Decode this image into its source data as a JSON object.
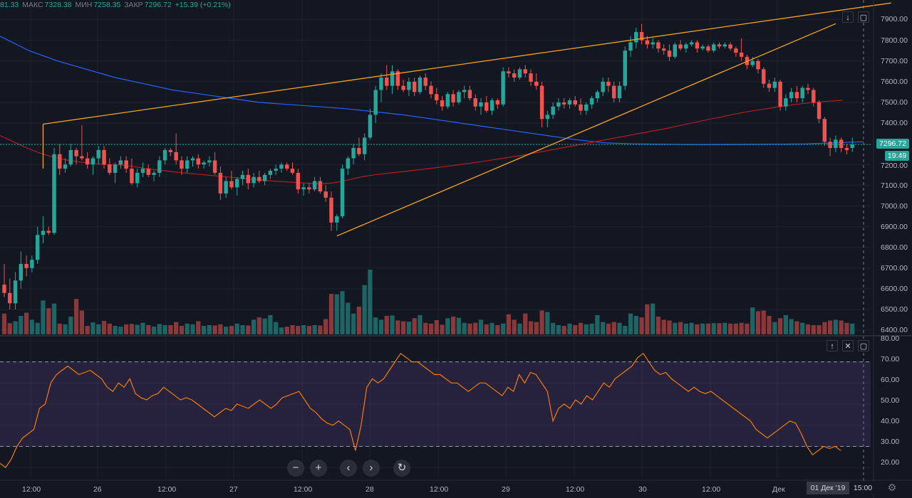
{
  "ohlc": {
    "open_value": "81.33",
    "high_label": "МАКС",
    "high_value": "7328.38",
    "low_label": "МИН",
    "low_value": "7258.35",
    "close_label": "ЗАКР",
    "close_value": "7296.72",
    "change": "+15.39 (+0.21%)"
  },
  "price_axis": {
    "ticks": [
      "7900.00",
      "7800.00",
      "7700.00",
      "7600.00",
      "7500.00",
      "7400.00",
      "7300.00",
      "7200.00",
      "7100.00",
      "7000.00",
      "6900.00",
      "6800.00",
      "6700.00",
      "6600.00",
      "6500.00",
      "6400.00"
    ],
    "last_price": "7296.72",
    "countdown": "19:49"
  },
  "rsi_axis": {
    "ticks": [
      "80.00",
      "70.00",
      "60.00",
      "50.00",
      "40.00",
      "30.00",
      "20.00"
    ]
  },
  "time_axis": {
    "labels": [
      "12:00",
      "26",
      "12:00",
      "27",
      "12:00",
      "28",
      "12:00",
      "29",
      "12:00",
      "30",
      "12:00",
      "Дек"
    ],
    "crosshair_date": "01 Дек '19",
    "crosshair_time": "15:00"
  },
  "colors": {
    "up": "#26a69a",
    "down": "#ef5350",
    "trendline": "#f7a21b",
    "ma_slow": "#2962ff",
    "ma_fast": "#b71c1c",
    "rsi_line": "#f57c00",
    "rsi_band": "#7e57c2"
  },
  "icons": {
    "collapse": "arrow-down-icon",
    "maximize": "maximize-icon",
    "move_up": "arrow-up-icon",
    "close": "close-icon",
    "zoom_out": "minus-icon",
    "zoom_in": "plus-icon",
    "scroll_left": "chevron-left-icon",
    "scroll_right": "chevron-right-icon",
    "reset": "reset-icon",
    "settings": "gear-icon"
  },
  "chart_data": {
    "type": "candlestick",
    "pane": "price",
    "ylim": [
      6380,
      7960
    ],
    "candles": [
      [
        6620,
        6720,
        6560,
        6580
      ],
      [
        6580,
        6650,
        6500,
        6530
      ],
      [
        6530,
        6680,
        6500,
        6640
      ],
      [
        6640,
        6780,
        6600,
        6720
      ],
      [
        6720,
        6760,
        6660,
        6700
      ],
      [
        6700,
        6760,
        6680,
        6740
      ],
      [
        6740,
        6900,
        6720,
        6860
      ],
      [
        6860,
        6950,
        6820,
        6880
      ],
      [
        6880,
        6900,
        6860,
        6870
      ],
      [
        6870,
        7280,
        6860,
        7250
      ],
      [
        7250,
        7300,
        7150,
        7180
      ],
      [
        7180,
        7230,
        7160,
        7200
      ],
      [
        7200,
        7300,
        7190,
        7270
      ],
      [
        7270,
        7280,
        7200,
        7240
      ],
      [
        7240,
        7390,
        7220,
        7230
      ],
      [
        7230,
        7260,
        7180,
        7200
      ],
      [
        7200,
        7240,
        7150,
        7230
      ],
      [
        7230,
        7290,
        7200,
        7270
      ],
      [
        7270,
        7290,
        7180,
        7200
      ],
      [
        7200,
        7230,
        7150,
        7160
      ],
      [
        7160,
        7210,
        7110,
        7200
      ],
      [
        7200,
        7240,
        7180,
        7220
      ],
      [
        7220,
        7240,
        7160,
        7180
      ],
      [
        7180,
        7230,
        7100,
        7110
      ],
      [
        7110,
        7180,
        7090,
        7160
      ],
      [
        7160,
        7210,
        7140,
        7180
      ],
      [
        7180,
        7200,
        7140,
        7150
      ],
      [
        7150,
        7170,
        7120,
        7160
      ],
      [
        7160,
        7240,
        7140,
        7220
      ],
      [
        7220,
        7280,
        7200,
        7270
      ],
      [
        7270,
        7280,
        7240,
        7260
      ],
      [
        7260,
        7350,
        7200,
        7220
      ],
      [
        7220,
        7240,
        7150,
        7180
      ],
      [
        7180,
        7240,
        7160,
        7220
      ],
      [
        7220,
        7240,
        7190,
        7230
      ],
      [
        7230,
        7250,
        7180,
        7200
      ],
      [
        7200,
        7220,
        7180,
        7210
      ],
      [
        7210,
        7240,
        7190,
        7220
      ],
      [
        7220,
        7260,
        7150,
        7160
      ],
      [
        7160,
        7190,
        7030,
        7060
      ],
      [
        7060,
        7140,
        7040,
        7120
      ],
      [
        7120,
        7170,
        7080,
        7090
      ],
      [
        7090,
        7140,
        7050,
        7130
      ],
      [
        7130,
        7170,
        7100,
        7150
      ],
      [
        7150,
        7180,
        7080,
        7110
      ],
      [
        7110,
        7160,
        7090,
        7140
      ],
      [
        7140,
        7170,
        7110,
        7120
      ],
      [
        7120,
        7160,
        7100,
        7150
      ],
      [
        7150,
        7180,
        7130,
        7170
      ],
      [
        7170,
        7200,
        7150,
        7180
      ],
      [
        7180,
        7210,
        7160,
        7200
      ],
      [
        7200,
        7210,
        7170,
        7180
      ],
      [
        7180,
        7210,
        7150,
        7160
      ],
      [
        7160,
        7180,
        7060,
        7080
      ],
      [
        7080,
        7110,
        7050,
        7090
      ],
      [
        7090,
        7110,
        7060,
        7080
      ],
      [
        7080,
        7140,
        7070,
        7120
      ],
      [
        7120,
        7140,
        7060,
        7070
      ],
      [
        7070,
        7100,
        7020,
        7040
      ],
      [
        7040,
        7070,
        6880,
        6920
      ],
      [
        6920,
        6960,
        6880,
        6950
      ],
      [
        6950,
        7200,
        6940,
        7180
      ],
      [
        7180,
        7240,
        7150,
        7230
      ],
      [
        7230,
        7300,
        7200,
        7280
      ],
      [
        7280,
        7330,
        7240,
        7250
      ],
      [
        7250,
        7350,
        7220,
        7330
      ],
      [
        7330,
        7470,
        7320,
        7440
      ],
      [
        7440,
        7580,
        7400,
        7560
      ],
      [
        7560,
        7640,
        7500,
        7620
      ],
      [
        7620,
        7680,
        7560,
        7580
      ],
      [
        7580,
        7680,
        7540,
        7650
      ],
      [
        7650,
        7660,
        7560,
        7580
      ],
      [
        7580,
        7610,
        7550,
        7560
      ],
      [
        7560,
        7620,
        7530,
        7600
      ],
      [
        7600,
        7620,
        7530,
        7550
      ],
      [
        7550,
        7630,
        7540,
        7620
      ],
      [
        7620,
        7640,
        7560,
        7580
      ],
      [
        7580,
        7600,
        7520,
        7540
      ],
      [
        7540,
        7570,
        7490,
        7510
      ],
      [
        7510,
        7530,
        7460,
        7480
      ],
      [
        7480,
        7550,
        7470,
        7540
      ],
      [
        7540,
        7560,
        7480,
        7500
      ],
      [
        7500,
        7560,
        7490,
        7550
      ],
      [
        7550,
        7580,
        7520,
        7560
      ],
      [
        7560,
        7580,
        7510,
        7520
      ],
      [
        7520,
        7540,
        7460,
        7480
      ],
      [
        7480,
        7520,
        7440,
        7500
      ],
      [
        7500,
        7530,
        7450,
        7460
      ],
      [
        7460,
        7520,
        7440,
        7510
      ],
      [
        7510,
        7520,
        7470,
        7490
      ],
      [
        7490,
        7670,
        7480,
        7650
      ],
      [
        7650,
        7670,
        7620,
        7640
      ],
      [
        7640,
        7660,
        7600,
        7620
      ],
      [
        7620,
        7670,
        7610,
        7660
      ],
      [
        7660,
        7680,
        7620,
        7640
      ],
      [
        7640,
        7660,
        7580,
        7600
      ],
      [
        7600,
        7640,
        7560,
        7580
      ],
      [
        7580,
        7600,
        7380,
        7420
      ],
      [
        7420,
        7460,
        7380,
        7440
      ],
      [
        7440,
        7500,
        7420,
        7480
      ],
      [
        7480,
        7520,
        7460,
        7500
      ],
      [
        7500,
        7520,
        7470,
        7490
      ],
      [
        7490,
        7520,
        7470,
        7510
      ],
      [
        7510,
        7530,
        7480,
        7490
      ],
      [
        7490,
        7520,
        7440,
        7460
      ],
      [
        7460,
        7500,
        7440,
        7490
      ],
      [
        7490,
        7530,
        7470,
        7520
      ],
      [
        7520,
        7560,
        7500,
        7550
      ],
      [
        7550,
        7620,
        7530,
        7600
      ],
      [
        7600,
        7620,
        7550,
        7580
      ],
      [
        7580,
        7600,
        7500,
        7520
      ],
      [
        7520,
        7600,
        7500,
        7580
      ],
      [
        7580,
        7770,
        7560,
        7750
      ],
      [
        7750,
        7820,
        7720,
        7790
      ],
      [
        7790,
        7860,
        7760,
        7840
      ],
      [
        7840,
        7880,
        7780,
        7800
      ],
      [
        7800,
        7820,
        7760,
        7780
      ],
      [
        7780,
        7810,
        7760,
        7790
      ],
      [
        7790,
        7800,
        7740,
        7760
      ],
      [
        7760,
        7780,
        7730,
        7750
      ],
      [
        7750,
        7780,
        7700,
        7720
      ],
      [
        7720,
        7790,
        7710,
        7780
      ],
      [
        7780,
        7800,
        7750,
        7760
      ],
      [
        7760,
        7790,
        7740,
        7780
      ],
      [
        7780,
        7800,
        7770,
        7790
      ],
      [
        7790,
        7800,
        7740,
        7760
      ],
      [
        7760,
        7780,
        7750,
        7770
      ],
      [
        7770,
        7780,
        7740,
        7750
      ],
      [
        7750,
        7790,
        7740,
        7780
      ],
      [
        7780,
        7790,
        7760,
        7770
      ],
      [
        7770,
        7790,
        7760,
        7780
      ],
      [
        7780,
        7790,
        7750,
        7760
      ],
      [
        7760,
        7770,
        7720,
        7740
      ],
      [
        7740,
        7810,
        7700,
        7720
      ],
      [
        7720,
        7730,
        7660,
        7680
      ],
      [
        7680,
        7720,
        7670,
        7700
      ],
      [
        7700,
        7710,
        7640,
        7660
      ],
      [
        7660,
        7670,
        7570,
        7590
      ],
      [
        7590,
        7610,
        7550,
        7570
      ],
      [
        7570,
        7620,
        7550,
        7600
      ],
      [
        7600,
        7610,
        7460,
        7480
      ],
      [
        7480,
        7540,
        7460,
        7520
      ],
      [
        7520,
        7570,
        7500,
        7550
      ],
      [
        7550,
        7580,
        7500,
        7520
      ],
      [
        7520,
        7580,
        7500,
        7570
      ],
      [
        7570,
        7590,
        7540,
        7560
      ],
      [
        7560,
        7570,
        7480,
        7500
      ],
      [
        7500,
        7510,
        7400,
        7420
      ],
      [
        7420,
        7430,
        7290,
        7310
      ],
      [
        7310,
        7330,
        7240,
        7280
      ],
      [
        7280,
        7340,
        7260,
        7320
      ],
      [
        7320,
        7330,
        7260,
        7280
      ],
      [
        7280,
        7300,
        7250,
        7270
      ],
      [
        7280,
        7330,
        7260,
        7297
      ]
    ],
    "volume": [
      54,
      29,
      34,
      48,
      56,
      38,
      30,
      88,
      68,
      80,
      28,
      26,
      46,
      92,
      62,
      22,
      31,
      26,
      35,
      28,
      22,
      20,
      26,
      27,
      25,
      30,
      24,
      20,
      27,
      24,
      24,
      32,
      22,
      28,
      26,
      34,
      22,
      24,
      23,
      26,
      20,
      22,
      28,
      24,
      23,
      38,
      44,
      41,
      50,
      32,
      18,
      20,
      24,
      22,
      24,
      22,
      24,
      23,
      40,
      105,
      104,
      112,
      82,
      54,
      72,
      128,
      168,
      44,
      38,
      48,
      49,
      36,
      34,
      33,
      42,
      50,
      30,
      28,
      37,
      25,
      42,
      46,
      43,
      30,
      28,
      30,
      38,
      26,
      30,
      24,
      28,
      52,
      38,
      28,
      54,
      34,
      32,
      62,
      58,
      30,
      24,
      22,
      28,
      24,
      30,
      26,
      28,
      50,
      32,
      28,
      32,
      30,
      22,
      54,
      48,
      44,
      78,
      80,
      46,
      38,
      36,
      30,
      32,
      28,
      30,
      26,
      28,
      28,
      29,
      29,
      30,
      28,
      28,
      30,
      28,
      70,
      60,
      62,
      48,
      32,
      42,
      50,
      40,
      34,
      30,
      26,
      24,
      24,
      32,
      36,
      38,
      36,
      30,
      28,
      26
    ],
    "volume_ylim": [
      0,
      240
    ],
    "ma_fast": [
      7340,
      7310,
      7280,
      7255,
      7235,
      7222,
      7212,
      7205,
      7200,
      7198,
      7190,
      7180,
      7172,
      7165,
      7158,
      7152,
      7146,
      7140,
      7134,
      7128,
      7122,
      7118,
      7114,
      7110,
      7106,
      7112,
      7125,
      7140,
      7150,
      7158,
      7165,
      7172,
      7180,
      7188,
      7196,
      7205,
      7214,
      7224,
      7234,
      7244,
      7256,
      7268,
      7280,
      7292,
      7304,
      7316,
      7328,
      7340,
      7352,
      7364,
      7376,
      7390,
      7404,
      7418,
      7430,
      7444,
      7456,
      7466,
      7476,
      7486,
      7494,
      7500,
      7506,
      7510
    ],
    "ma_slow": [
      7820,
      7750,
      7700,
      7660,
      7620,
      7590,
      7560,
      7540,
      7520,
      7500,
      7490,
      7480,
      7470,
      7455,
      7440,
      7420,
      7400,
      7380,
      7360,
      7340,
      7320,
      7305,
      7300,
      7298,
      7296,
      7296,
      7297,
      7298,
      7300,
      7305,
      7310
    ],
    "trendlines": [
      {
        "from": [
          7,
          7395
        ],
        "to": [
          160,
          7980
        ]
      },
      {
        "from": [
          60,
          6855
        ],
        "to": [
          150,
          7880
        ]
      },
      {
        "from": [
          7,
          7395
        ],
        "to": [
          7,
          7180
        ]
      }
    ],
    "rsi": {
      "ylim": [
        15,
        82
      ],
      "upper": 70,
      "lower": 30,
      "values": [
        22,
        20,
        24,
        30,
        34,
        36,
        38,
        48,
        50,
        60,
        64,
        66,
        68,
        66,
        64,
        65,
        66,
        64,
        62,
        58,
        56,
        60,
        58,
        62,
        55,
        53,
        52,
        54,
        55,
        58,
        56,
        54,
        52,
        53,
        52,
        50,
        48,
        46,
        44,
        46,
        48,
        47,
        50,
        49,
        48,
        50,
        52,
        50,
        48,
        50,
        53,
        54,
        55,
        56,
        52,
        48,
        46,
        43,
        41,
        40,
        42,
        40,
        38,
        28,
        40,
        58,
        62,
        60,
        62,
        66,
        70,
        74,
        72,
        70,
        70,
        68,
        66,
        64,
        64,
        62,
        60,
        60,
        58,
        56,
        58,
        60,
        60,
        58,
        56,
        54,
        58,
        56,
        64,
        60,
        65,
        64,
        60,
        56,
        42,
        48,
        50,
        48,
        52,
        50,
        54,
        52,
        56,
        60,
        58,
        62,
        64,
        66,
        68,
        72,
        74,
        70,
        66,
        64,
        65,
        62,
        60,
        58,
        56,
        58,
        56,
        55,
        56,
        54,
        52,
        50,
        48,
        46,
        44,
        42,
        38,
        36,
        34,
        36,
        38,
        40,
        42,
        41,
        36,
        30,
        26,
        28,
        30,
        29,
        30,
        28
      ],
      "ticks_ref": "rsi_axis.ticks"
    },
    "price_ticks": [
      7900,
      7800,
      7700,
      7600,
      7500,
      7400,
      7300,
      7200,
      7100,
      7000,
      6900,
      6800,
      6700,
      6600,
      6500,
      6400
    ],
    "rsi_ticks": [
      80,
      70,
      60,
      50,
      40,
      30,
      20
    ],
    "time_labels": [
      "12:00",
      "26",
      "12:00",
      "27",
      "12:00",
      "28",
      "12:00",
      "29",
      "12:00",
      "30",
      "12:00",
      "Дек"
    ],
    "last_price": 7296.72
  }
}
